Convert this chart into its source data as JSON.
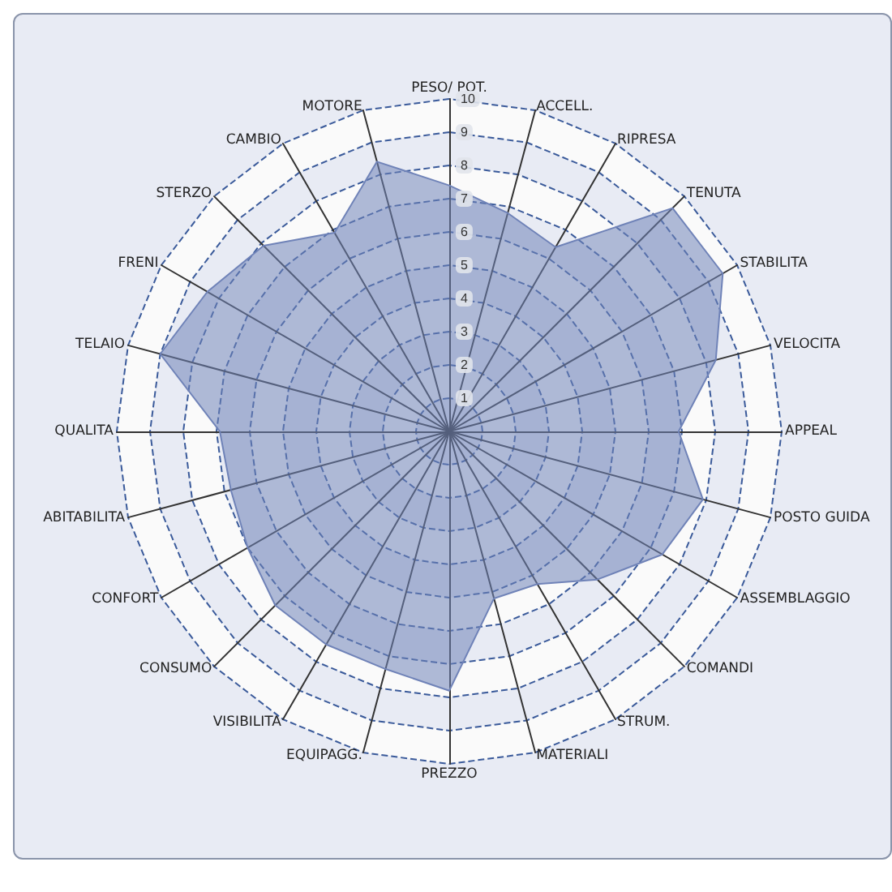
{
  "chart_data": {
    "type": "radar",
    "categories": [
      "PESO/ POT.",
      "ACCELL.",
      "RIPRESA",
      "TENUTA",
      "STABILITA",
      "VELOCITA",
      "APPEAL",
      "POSTO GUIDA",
      "ASSEMBLAGGIO",
      "COMANDI",
      "STRUM.",
      "MATERIALI",
      "PREZZO",
      "EQUIPAGG.",
      "VISIBILITA",
      "CONSUMO",
      "CONFORT",
      "ABITABILITA",
      "QUALITA",
      "TELAIO",
      "FRENI",
      "STERZO",
      "CAMBIO",
      "MOTORE"
    ],
    "series": [
      {
        "color": "#7083b8",
        "values": [
          7.4,
          6.8,
          6.4,
          9.5,
          9.5,
          8.3,
          6.9,
          7.9,
          7.4,
          6.3,
          5.3,
          5.2,
          7.8,
          7.4,
          7.4,
          7.4,
          7.0,
          6.8,
          6.9,
          9.0,
          8.4,
          7.9,
          6.9,
          8.4
        ]
      }
    ],
    "ylim": [
      0,
      10
    ],
    "yticks": [
      1,
      2,
      3,
      4,
      5,
      6,
      7,
      8,
      9,
      10
    ],
    "grid": true
  }
}
